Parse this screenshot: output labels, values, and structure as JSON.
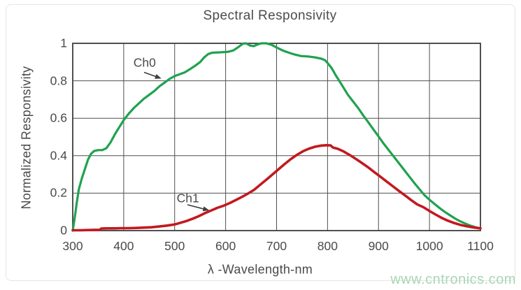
{
  "watermark": "www.cntronics.com",
  "colors": {
    "ch0_line": "#1fa24f",
    "ch1_line": "#c2191f",
    "grid": "#4f4f4f",
    "text": "#4a4a4a",
    "watermark": "#a7d7b3"
  },
  "chart_data": {
    "type": "line",
    "title": "Spectral Responsivity",
    "xlabel": "λ -Wavelength-nm",
    "ylabel": "Normalized Responsivity",
    "xlim": [
      300,
      1100
    ],
    "ylim": [
      0,
      1
    ],
    "x_ticks": [
      300,
      400,
      500,
      600,
      700,
      800,
      900,
      1000,
      1100
    ],
    "y_ticks": [
      0,
      0.2,
      0.4,
      0.6,
      0.8,
      1
    ],
    "grid": true,
    "legend_position": "inline-annotations",
    "series": [
      {
        "name": "Ch0",
        "color": "#1fa24f",
        "points": [
          [
            300,
            0.0
          ],
          [
            304,
            0.07
          ],
          [
            308,
            0.15
          ],
          [
            312,
            0.22
          ],
          [
            318,
            0.28
          ],
          [
            324,
            0.33
          ],
          [
            330,
            0.38
          ],
          [
            336,
            0.41
          ],
          [
            342,
            0.425
          ],
          [
            350,
            0.43
          ],
          [
            358,
            0.43
          ],
          [
            366,
            0.44
          ],
          [
            374,
            0.47
          ],
          [
            384,
            0.52
          ],
          [
            392,
            0.555
          ],
          [
            400,
            0.59
          ],
          [
            410,
            0.625
          ],
          [
            420,
            0.655
          ],
          [
            430,
            0.68
          ],
          [
            440,
            0.705
          ],
          [
            450,
            0.725
          ],
          [
            460,
            0.745
          ],
          [
            470,
            0.77
          ],
          [
            480,
            0.79
          ],
          [
            490,
            0.81
          ],
          [
            500,
            0.825
          ],
          [
            510,
            0.835
          ],
          [
            520,
            0.845
          ],
          [
            530,
            0.862
          ],
          [
            540,
            0.88
          ],
          [
            550,
            0.9
          ],
          [
            558,
            0.925
          ],
          [
            566,
            0.943
          ],
          [
            574,
            0.95
          ],
          [
            590,
            0.952
          ],
          [
            605,
            0.955
          ],
          [
            615,
            0.962
          ],
          [
            625,
            0.98
          ],
          [
            634,
            0.998
          ],
          [
            640,
            1.0
          ],
          [
            648,
            0.988
          ],
          [
            655,
            0.985
          ],
          [
            662,
            0.993
          ],
          [
            670,
            1.0
          ],
          [
            680,
            1.0
          ],
          [
            690,
            0.992
          ],
          [
            700,
            0.978
          ],
          [
            712,
            0.962
          ],
          [
            724,
            0.95
          ],
          [
            736,
            0.94
          ],
          [
            748,
            0.932
          ],
          [
            762,
            0.93
          ],
          [
            775,
            0.925
          ],
          [
            788,
            0.918
          ],
          [
            795,
            0.91
          ],
          [
            800,
            0.895
          ],
          [
            808,
            0.868
          ],
          [
            816,
            0.83
          ],
          [
            824,
            0.795
          ],
          [
            832,
            0.76
          ],
          [
            840,
            0.725
          ],
          [
            850,
            0.69
          ],
          [
            860,
            0.655
          ],
          [
            870,
            0.615
          ],
          [
            880,
            0.578
          ],
          [
            890,
            0.54
          ],
          [
            900,
            0.503
          ],
          [
            910,
            0.465
          ],
          [
            920,
            0.43
          ],
          [
            930,
            0.395
          ],
          [
            940,
            0.36
          ],
          [
            950,
            0.325
          ],
          [
            960,
            0.29
          ],
          [
            970,
            0.255
          ],
          [
            980,
            0.222
          ],
          [
            990,
            0.19
          ],
          [
            1000,
            0.165
          ],
          [
            1010,
            0.142
          ],
          [
            1020,
            0.12
          ],
          [
            1030,
            0.1
          ],
          [
            1040,
            0.082
          ],
          [
            1050,
            0.065
          ],
          [
            1060,
            0.05
          ],
          [
            1070,
            0.038
          ],
          [
            1080,
            0.027
          ],
          [
            1090,
            0.018
          ],
          [
            1100,
            0.012
          ]
        ]
      },
      {
        "name": "Ch1",
        "color": "#c2191f",
        "points": [
          [
            300,
            0.002
          ],
          [
            315,
            0.002
          ],
          [
            330,
            0.003
          ],
          [
            345,
            0.004
          ],
          [
            353,
            0.004
          ],
          [
            356,
            0.011
          ],
          [
            368,
            0.012
          ],
          [
            382,
            0.012
          ],
          [
            396,
            0.013
          ],
          [
            410,
            0.013
          ],
          [
            425,
            0.014
          ],
          [
            440,
            0.016
          ],
          [
            455,
            0.018
          ],
          [
            470,
            0.022
          ],
          [
            485,
            0.027
          ],
          [
            500,
            0.033
          ],
          [
            512,
            0.042
          ],
          [
            524,
            0.052
          ],
          [
            536,
            0.064
          ],
          [
            548,
            0.078
          ],
          [
            560,
            0.094
          ],
          [
            572,
            0.108
          ],
          [
            584,
            0.122
          ],
          [
            596,
            0.133
          ],
          [
            608,
            0.147
          ],
          [
            620,
            0.163
          ],
          [
            632,
            0.18
          ],
          [
            644,
            0.198
          ],
          [
            656,
            0.218
          ],
          [
            668,
            0.245
          ],
          [
            680,
            0.272
          ],
          [
            692,
            0.3
          ],
          [
            704,
            0.328
          ],
          [
            716,
            0.356
          ],
          [
            728,
            0.382
          ],
          [
            740,
            0.405
          ],
          [
            752,
            0.424
          ],
          [
            764,
            0.438
          ],
          [
            776,
            0.448
          ],
          [
            788,
            0.454
          ],
          [
            798,
            0.456
          ],
          [
            806,
            0.455
          ],
          [
            811,
            0.443
          ],
          [
            820,
            0.437
          ],
          [
            832,
            0.422
          ],
          [
            844,
            0.403
          ],
          [
            856,
            0.382
          ],
          [
            868,
            0.36
          ],
          [
            880,
            0.337
          ],
          [
            892,
            0.312
          ],
          [
            904,
            0.287
          ],
          [
            916,
            0.262
          ],
          [
            928,
            0.237
          ],
          [
            940,
            0.212
          ],
          [
            952,
            0.188
          ],
          [
            964,
            0.163
          ],
          [
            976,
            0.14
          ],
          [
            988,
            0.125
          ],
          [
            1000,
            0.105
          ],
          [
            1012,
            0.086
          ],
          [
            1024,
            0.068
          ],
          [
            1036,
            0.053
          ],
          [
            1048,
            0.041
          ],
          [
            1060,
            0.031
          ],
          [
            1072,
            0.024
          ],
          [
            1084,
            0.018
          ],
          [
            1100,
            0.012
          ]
        ]
      }
    ],
    "annotations": [
      {
        "label": "Ch0",
        "text_at": [
          441,
          0.895
        ],
        "arrow": [
          [
            440,
            0.845
          ],
          [
            474,
            0.812
          ]
        ]
      },
      {
        "label": "Ch1",
        "text_at": [
          526,
          0.17
        ],
        "arrow": [
          [
            525,
            0.138
          ],
          [
            568,
            0.108
          ]
        ]
      }
    ]
  }
}
